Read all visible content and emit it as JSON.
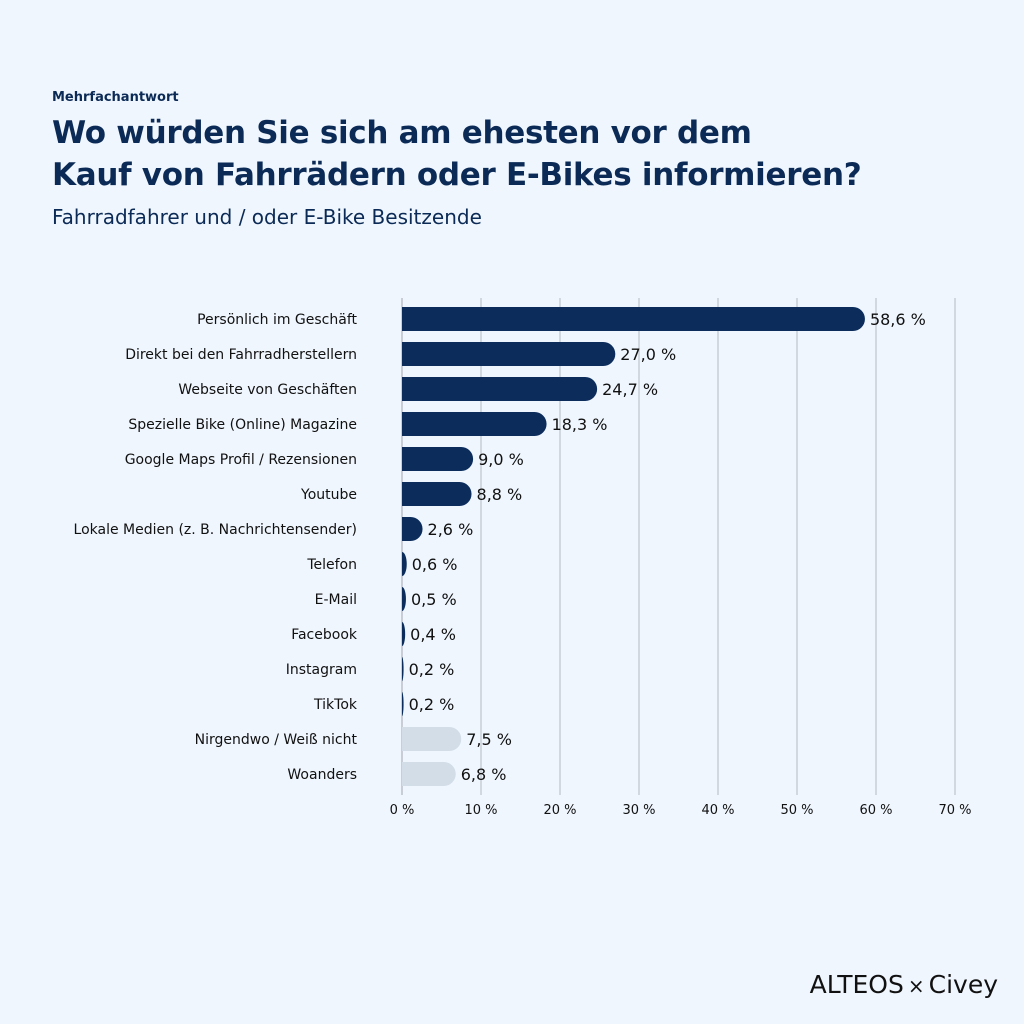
{
  "header": {
    "kicker": "Mehrfachantwort",
    "title_line1": "Wo würden Sie sich am ehesten vor dem",
    "title_line2": "Kauf von Fahrrädern oder E-Bikes informieren?",
    "subtitle": "Fahrradfahrer und / oder E-Bike Besitzende"
  },
  "logo": {
    "brand1": "ALTEOS",
    "separator": "×",
    "brand2": "Civey"
  },
  "colors": {
    "primary": "#0c2d5c",
    "secondary": "#d2dde8",
    "grid": "#c9ced6",
    "accent": "#f5b82e"
  },
  "chart_data": {
    "type": "bar",
    "orientation": "horizontal",
    "categories": [
      "Persönlich im Geschäft",
      "Direkt bei den Fahrradherstellern",
      "Webseite von Geschäften",
      "Spezielle Bike (Online) Magazine",
      "Google Maps Profil / Rezensionen",
      "Youtube",
      "Lokale Medien (z. B. Nachrichtensender)",
      "Telefon",
      "E-Mail",
      "Facebook",
      "Instagram",
      "TikTok",
      "Nirgendwo / Weiß nicht",
      "Woanders"
    ],
    "values": [
      58.6,
      27.0,
      24.7,
      18.3,
      9.0,
      8.8,
      2.6,
      0.6,
      0.5,
      0.4,
      0.2,
      0.2,
      7.5,
      6.8
    ],
    "value_labels": [
      "58,6 %",
      "27,0 %",
      "24,7 %",
      "18,3 %",
      "9,0 %",
      "8,8 %",
      "2,6 %",
      "0,6 %",
      "0,5 %",
      "0,4 %",
      "0,2 %",
      "0,2 %",
      "7,5 %",
      "6,8 %"
    ],
    "highlight": [
      "primary",
      "primary",
      "primary",
      "primary",
      "primary",
      "primary",
      "primary",
      "primary",
      "primary",
      "primary",
      "primary",
      "primary",
      "secondary",
      "secondary"
    ],
    "xlim": [
      0,
      70
    ],
    "xticks": [
      0,
      10,
      20,
      30,
      40,
      50,
      60,
      70
    ],
    "xtick_labels": [
      "0 %",
      "10 %",
      "20 %",
      "30 %",
      "40 %",
      "50 %",
      "60 %",
      "70 %"
    ],
    "grid": true,
    "title": "",
    "xlabel": "",
    "ylabel": ""
  }
}
